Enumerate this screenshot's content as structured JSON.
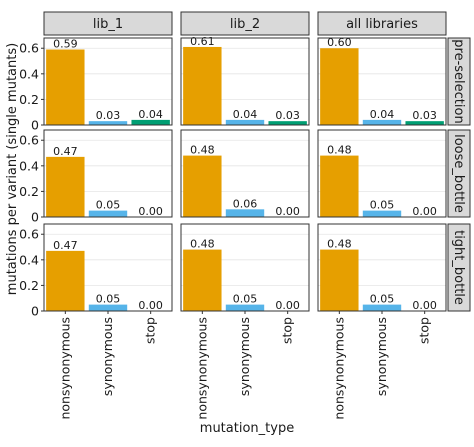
{
  "chart_data": {
    "type": "bar",
    "facet_cols": [
      "lib_1",
      "lib_2",
      "all libraries"
    ],
    "facet_rows": [
      "pre-selection",
      "loose_bottle",
      "tight_bottle"
    ],
    "categories": [
      "nonsynonymous",
      "synonymous",
      "stop"
    ],
    "category_colors": [
      "#E69F00",
      "#56B4E9",
      "#009E73"
    ],
    "values": [
      [
        [
          0.59,
          0.03,
          0.04
        ],
        [
          0.61,
          0.04,
          0.03
        ],
        [
          0.6,
          0.04,
          0.03
        ]
      ],
      [
        [
          0.47,
          0.05,
          0.0
        ],
        [
          0.48,
          0.06,
          0.0
        ],
        [
          0.48,
          0.05,
          0.0
        ]
      ],
      [
        [
          0.47,
          0.05,
          0.0
        ],
        [
          0.48,
          0.05,
          0.0
        ],
        [
          0.48,
          0.05,
          0.0
        ]
      ]
    ],
    "value_labels": [
      [
        [
          "0.59",
          "0.03",
          "0.04"
        ],
        [
          "0.61",
          "0.04",
          "0.03"
        ],
        [
          "0.60",
          "0.04",
          "0.03"
        ]
      ],
      [
        [
          "0.47",
          "0.05",
          "0.00"
        ],
        [
          "0.48",
          "0.06",
          "0.00"
        ],
        [
          "0.48",
          "0.05",
          "0.00"
        ]
      ],
      [
        [
          "0.47",
          "0.05",
          "0.00"
        ],
        [
          "0.48",
          "0.05",
          "0.00"
        ],
        [
          "0.48",
          "0.05",
          "0.00"
        ]
      ]
    ],
    "y_ticks": [
      0,
      0.2,
      0.4,
      0.6
    ],
    "y_tick_labels": [
      "0",
      "0.2",
      "0.4",
      "0.6"
    ],
    "ylim": [
      0,
      0.68
    ],
    "xlabel": "mutation_type",
    "ylabel": "mutations per variant (single mutants)",
    "grid": true,
    "legend": "none"
  }
}
